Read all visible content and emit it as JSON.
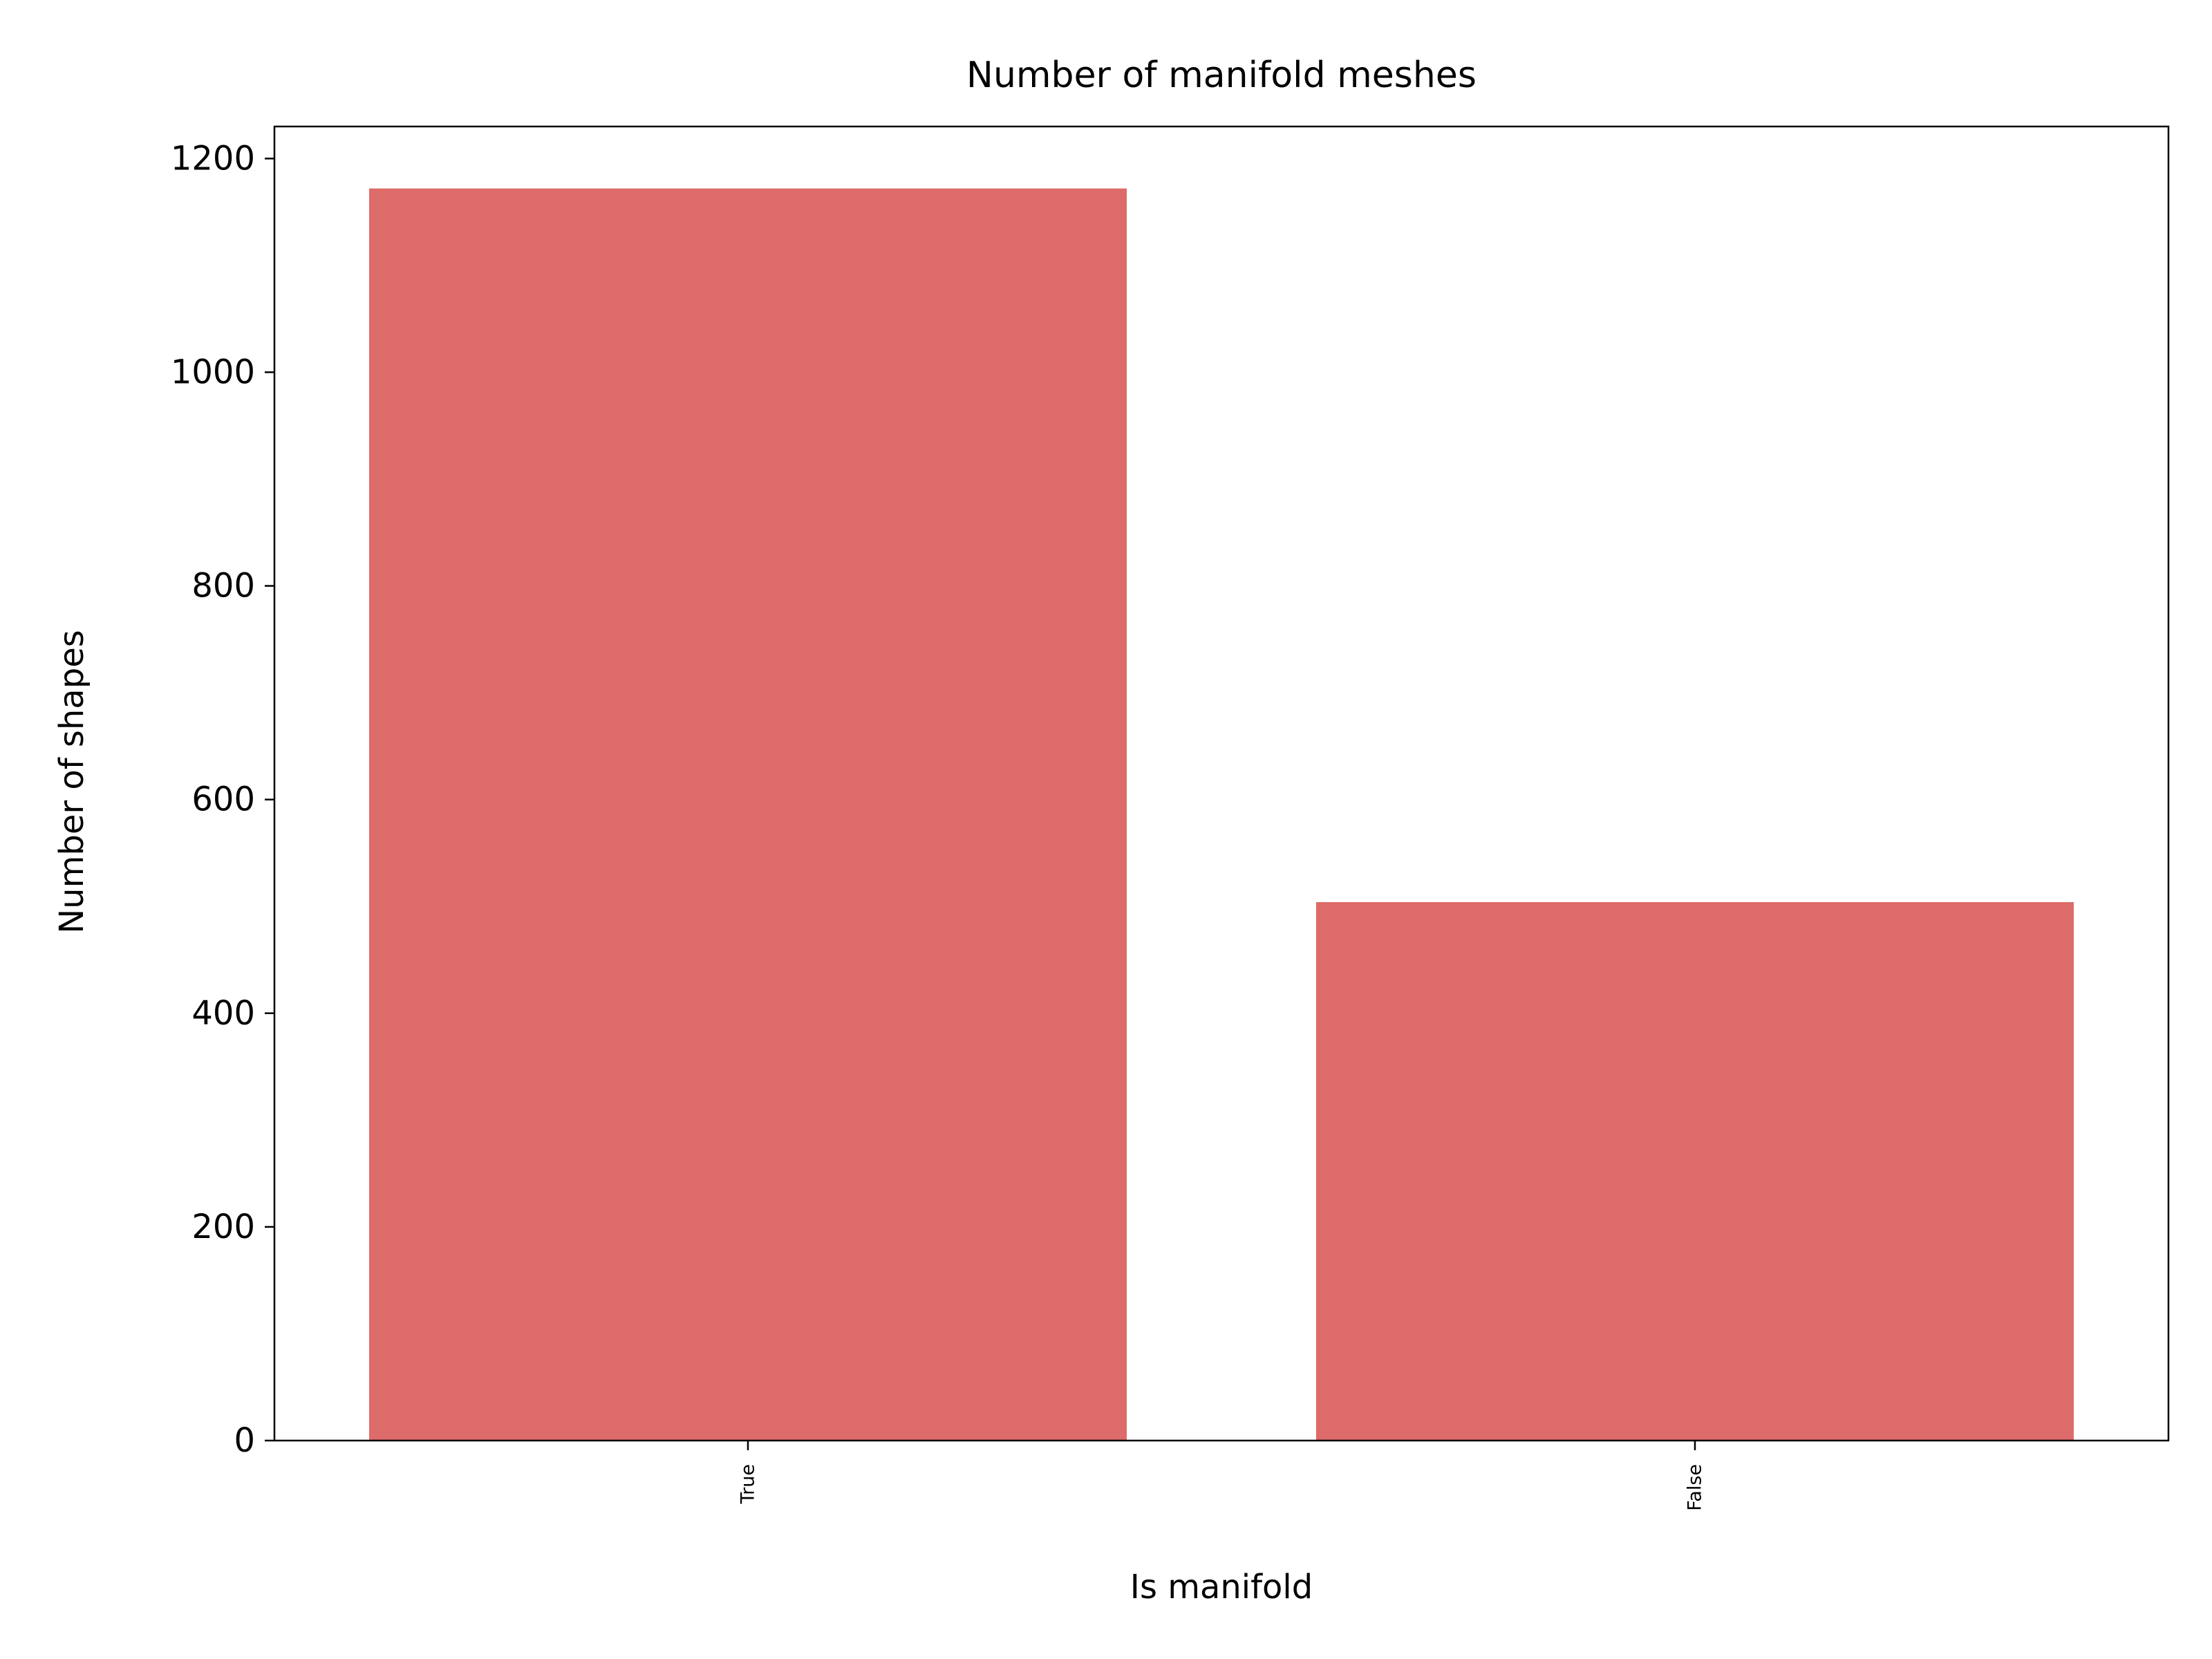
{
  "chart_data": {
    "type": "bar",
    "title": "Number of manifold meshes",
    "xlabel": "Is manifold",
    "ylabel": "Number of shapes",
    "categories": [
      "True",
      "False"
    ],
    "values": [
      1172,
      504
    ],
    "ylim": [
      0,
      1230
    ],
    "yticks": [
      0,
      200,
      400,
      600,
      800,
      1000,
      1200
    ],
    "grid": false,
    "legend": "none",
    "bar_color": "#dc6b6a"
  }
}
